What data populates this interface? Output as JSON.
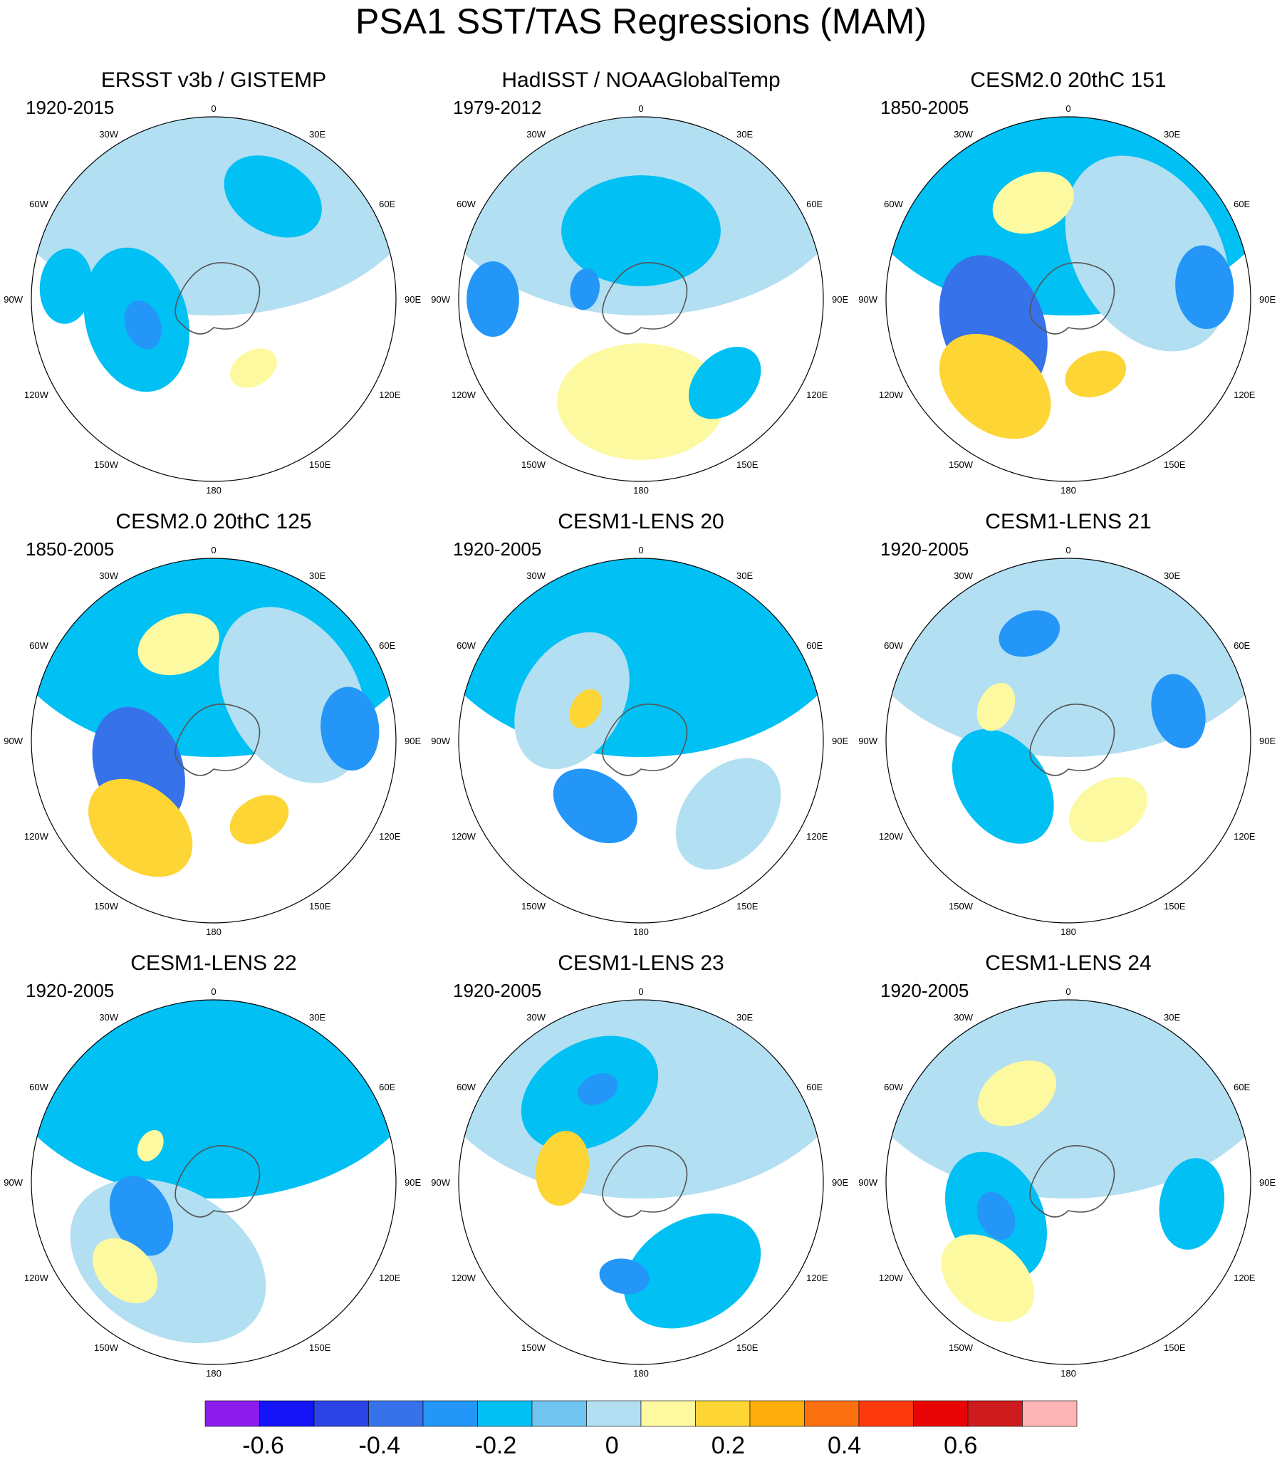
{
  "chart_data": {
    "type": "polar-stereographic contour map panels (filled)",
    "title": "PSA1 SST/TAS Regressions (MAM)",
    "longitude_labels": [
      "0",
      "30E",
      "60E",
      "90E",
      "120E",
      "150E",
      "180",
      "150W",
      "120W",
      "90W",
      "60W",
      "30W"
    ],
    "panels": [
      {
        "title": "ERSST v3b / GISTEMP",
        "period": "1920-2015",
        "features": [
          {
            "value": 0.05,
            "lon": 0,
            "lat": -30,
            "size": 1.0
          },
          {
            "value": -0.15,
            "lon": -105,
            "lat": -55,
            "size": 0.35
          },
          {
            "value": -0.25,
            "lon": -110,
            "lat": -57,
            "size": 0.12
          },
          {
            "value": -0.15,
            "lon": 30,
            "lat": -38,
            "size": 0.25
          },
          {
            "value": -0.15,
            "lon": -85,
            "lat": -25,
            "size": 0.18
          },
          {
            "value": 0.15,
            "lon": 150,
            "lat": -55,
            "size": 0.12
          }
        ]
      },
      {
        "title": "HadISST / NOAAGlobalTemp",
        "period": "1979-2012",
        "features": [
          {
            "value": 0.05,
            "lon": 0,
            "lat": -30,
            "size": 1.0
          },
          {
            "value": -0.15,
            "lon": 0,
            "lat": -60,
            "size": 0.38
          },
          {
            "value": -0.25,
            "lon": -80,
            "lat": -65,
            "size": 0.1
          },
          {
            "value": 0.15,
            "lon": 180,
            "lat": -45,
            "size": 0.4
          },
          {
            "value": -0.25,
            "lon": -90,
            "lat": -25,
            "size": 0.18
          },
          {
            "value": -0.15,
            "lon": 135,
            "lat": -38,
            "size": 0.2
          }
        ]
      },
      {
        "title": "CESM2.0 20thC 151",
        "period": "1850-2005",
        "features": [
          {
            "value": -0.15,
            "lon": 0,
            "lat": -30,
            "size": 1.0
          },
          {
            "value": 0.05,
            "lon": 60,
            "lat": -50,
            "size": 0.5
          },
          {
            "value": -0.35,
            "lon": -110,
            "lat": -55,
            "size": 0.35
          },
          {
            "value": 0.25,
            "lon": -140,
            "lat": -40,
            "size": 0.3
          },
          {
            "value": -0.25,
            "lon": 85,
            "lat": -30,
            "size": 0.2
          },
          {
            "value": 0.15,
            "lon": -20,
            "lat": -45,
            "size": 0.2
          },
          {
            "value": 0.25,
            "lon": 160,
            "lat": -55,
            "size": 0.15
          }
        ]
      },
      {
        "title": "CESM2.0 20thC 125",
        "period": "1850-2005",
        "features": [
          {
            "value": -0.15,
            "lon": 0,
            "lat": -30,
            "size": 1.0
          },
          {
            "value": 0.05,
            "lon": 60,
            "lat": -50,
            "size": 0.45
          },
          {
            "value": -0.35,
            "lon": -110,
            "lat": -55,
            "size": 0.3
          },
          {
            "value": 0.25,
            "lon": -140,
            "lat": -40,
            "size": 0.28
          },
          {
            "value": -0.25,
            "lon": 85,
            "lat": -30,
            "size": 0.2
          },
          {
            "value": 0.15,
            "lon": -20,
            "lat": -45,
            "size": 0.2
          },
          {
            "value": 0.25,
            "lon": 150,
            "lat": -50,
            "size": 0.15
          }
        ]
      },
      {
        "title": "CESM1-LENS 20",
        "period": "1920-2005",
        "features": [
          {
            "value": -0.15,
            "lon": 0,
            "lat": -30,
            "size": 1.0
          },
          {
            "value": 0.05,
            "lon": -60,
            "lat": -55,
            "size": 0.35
          },
          {
            "value": 0.25,
            "lon": -60,
            "lat": -62,
            "size": 0.1
          },
          {
            "value": -0.25,
            "lon": -145,
            "lat": -55,
            "size": 0.22
          },
          {
            "value": 0.05,
            "lon": 130,
            "lat": -40,
            "size": 0.3
          },
          {
            "value": -0.15,
            "lon": 45,
            "lat": -50,
            "size": 0.3
          }
        ]
      },
      {
        "title": "CESM1-LENS 21",
        "period": "1920-2005",
        "features": [
          {
            "value": 0.05,
            "lon": 0,
            "lat": -30,
            "size": 1.0
          },
          {
            "value": -0.15,
            "lon": -125,
            "lat": -55,
            "size": 0.3
          },
          {
            "value": -0.25,
            "lon": -20,
            "lat": -40,
            "size": 0.15
          },
          {
            "value": -0.25,
            "lon": 75,
            "lat": -40,
            "size": 0.18
          },
          {
            "value": 0.15,
            "lon": 150,
            "lat": -55,
            "size": 0.2
          },
          {
            "value": 0.15,
            "lon": -65,
            "lat": -55,
            "size": 0.12
          }
        ]
      },
      {
        "title": "CESM1-LENS 22",
        "period": "1920-2005",
        "features": [
          {
            "value": -0.15,
            "lon": 0,
            "lat": -30,
            "size": 1.0
          },
          {
            "value": 0.05,
            "lon": -150,
            "lat": -50,
            "size": 0.5
          },
          {
            "value": -0.25,
            "lon": -115,
            "lat": -55,
            "size": 0.2
          },
          {
            "value": 0.15,
            "lon": -60,
            "lat": -58,
            "size": 0.08
          },
          {
            "value": 0.15,
            "lon": -135,
            "lat": -35,
            "size": 0.18
          }
        ]
      },
      {
        "title": "CESM1-LENS 23",
        "period": "1920-2005",
        "features": [
          {
            "value": 0.05,
            "lon": 0,
            "lat": -30,
            "size": 1.0
          },
          {
            "value": -0.15,
            "lon": -30,
            "lat": -45,
            "size": 0.35
          },
          {
            "value": -0.15,
            "lon": 150,
            "lat": -45,
            "size": 0.35
          },
          {
            "value": 0.25,
            "lon": -80,
            "lat": -55,
            "size": 0.18
          },
          {
            "value": -0.25,
            "lon": -170,
            "lat": -48,
            "size": 0.12
          },
          {
            "value": -0.25,
            "lon": -25,
            "lat": -45,
            "size": 0.1
          }
        ]
      },
      {
        "title": "CESM1-LENS 24",
        "period": "1920-2005",
        "features": [
          {
            "value": 0.05,
            "lon": 0,
            "lat": -30,
            "size": 1.0
          },
          {
            "value": -0.15,
            "lon": -115,
            "lat": -55,
            "size": 0.32
          },
          {
            "value": -0.25,
            "lon": -115,
            "lat": -55,
            "size": 0.12
          },
          {
            "value": 0.15,
            "lon": -140,
            "lat": -35,
            "size": 0.25
          },
          {
            "value": -0.15,
            "lon": 100,
            "lat": -35,
            "size": 0.22
          },
          {
            "value": 0.15,
            "lon": -30,
            "lat": -45,
            "size": 0.2
          }
        ]
      }
    ],
    "colorbar": {
      "ticks": [
        -0.6,
        -0.4,
        -0.2,
        0,
        0.2,
        0.4,
        0.6
      ],
      "tick_labels": [
        "-0.6",
        "-0.4",
        "-0.2",
        "0",
        "0.2",
        "0.4",
        "0.6"
      ],
      "levels": [
        -0.7,
        -0.6,
        -0.5,
        -0.4,
        -0.3,
        -0.2,
        -0.1,
        0,
        0.1,
        0.2,
        0.3,
        0.4,
        0.5,
        0.6,
        0.7,
        0.8
      ],
      "colors": [
        "#8c1cee",
        "#1414f7",
        "#2c44e6",
        "#3672ea",
        "#2496f8",
        "#00c0f4",
        "#70c4f0",
        "#b3dff2",
        "#fdf9a0",
        "#fdd535",
        "#fdad0e",
        "#fd7010",
        "#fc3a0c",
        "#e80305",
        "#ce1c1e",
        "#fdb5b5"
      ]
    }
  }
}
